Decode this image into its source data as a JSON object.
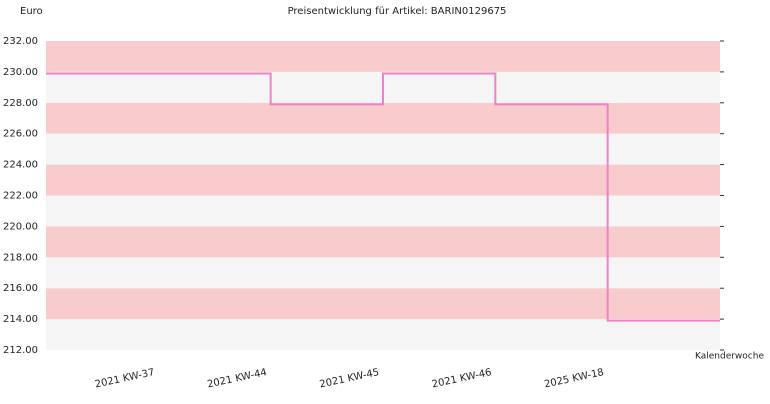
{
  "chart_data": {
    "type": "step",
    "title": "Preisentwicklung für Artikel: BARIN0129675",
    "y_label": "Euro",
    "x_label": "Kalenderwoche",
    "categories": [
      "2021 KW-37",
      "2021 KW-44",
      "2021 KW-45",
      "2021 KW-46",
      "2025 KW-18"
    ],
    "values": [
      229.9,
      227.9,
      229.9,
      227.9,
      213.9
    ],
    "color": "#f080c8",
    "band_colors": [
      "#f8cccc",
      "#f5f5f5"
    ],
    "ylim": [
      212,
      232
    ],
    "yticks": [
      {
        "value": 212,
        "label": "212.00"
      },
      {
        "value": 214,
        "label": "214.00"
      },
      {
        "value": 216,
        "label": "216.00"
      },
      {
        "value": 218,
        "label": "218.00"
      },
      {
        "value": 220,
        "label": "220.00"
      },
      {
        "value": 222,
        "label": "222.00"
      },
      {
        "value": 224,
        "label": "224.00"
      },
      {
        "value": 226,
        "label": "226.00"
      },
      {
        "value": 228,
        "label": "228.00"
      },
      {
        "value": 230,
        "label": "230.00"
      },
      {
        "value": 232,
        "label": "232.00"
      }
    ]
  }
}
